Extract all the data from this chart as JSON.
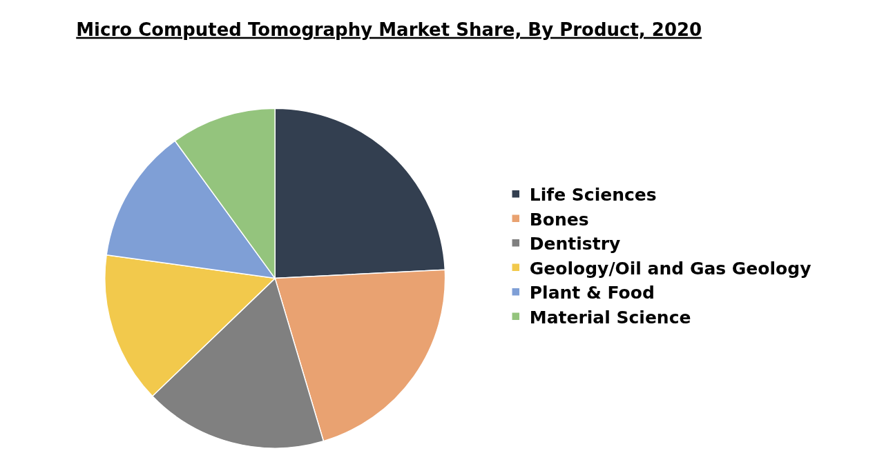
{
  "chart_data": {
    "type": "pie",
    "title": "Micro Computed Tomography Market Share, By Product, 2020",
    "categories": [
      "Life Sciences",
      "Bones",
      "Dentistry",
      "Geology/Oil and Gas Geology",
      "Plant & Food",
      "Material Science"
    ],
    "values": [
      24.2,
      21.2,
      17.4,
      14.4,
      12.8,
      10.0
    ],
    "colors": [
      "#333f50",
      "#e9a271",
      "#808080",
      "#f2c94c",
      "#7f9fd6",
      "#94c47d"
    ],
    "legend": "right"
  }
}
